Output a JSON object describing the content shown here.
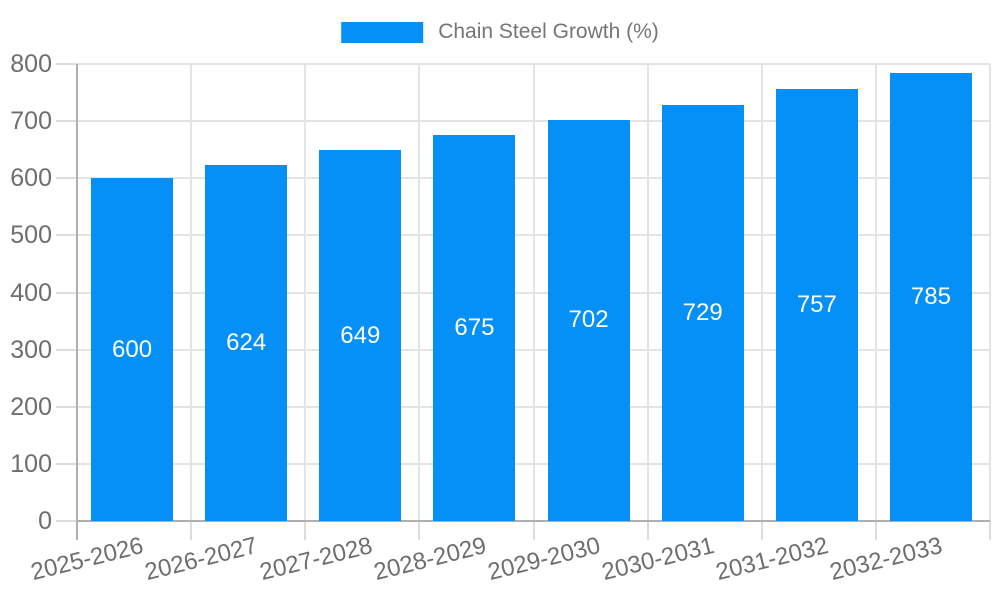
{
  "legend": {
    "label": "Chain Steel Growth (%)"
  },
  "colors": {
    "bar": "#0590f8",
    "grid": "#e4e4e4",
    "tick": "#dcdcdc",
    "axis": "#b0b0b0",
    "axis_text": "#6e6e6e",
    "legend_text": "#757575",
    "bar_label_text": "#ffffff",
    "background": "#ffffff"
  },
  "chart_data": {
    "type": "bar",
    "title": "Chain Steel Growth (%)",
    "categories": [
      "2025-2026",
      "2026-2027",
      "2027-2028",
      "2028-2029",
      "2029-2030",
      "2030-2031",
      "2031-2032",
      "2032-2033"
    ],
    "values": [
      600,
      624,
      649,
      675,
      702,
      729,
      757,
      785
    ],
    "series": [
      {
        "name": "Chain Steel Growth (%)",
        "values": [
          600,
          624,
          649,
          675,
          702,
          729,
          757,
          785
        ]
      }
    ],
    "xlabel": "",
    "ylabel": "",
    "ylim": [
      0,
      800
    ],
    "ytick_step": 100,
    "ytick_labels": [
      "0",
      "100",
      "200",
      "300",
      "400",
      "500",
      "600",
      "700",
      "800"
    ],
    "grid": true,
    "bar_value_labels": true,
    "legend_position": "top-center",
    "x_label_rotation_deg": -14
  }
}
